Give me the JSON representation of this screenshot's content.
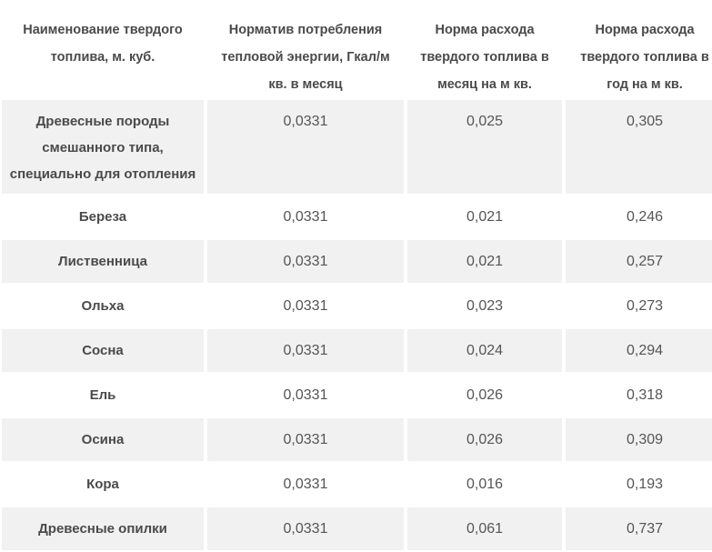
{
  "table": {
    "title_semantic": "solid-fuel-consumption-norms",
    "columns": [
      {
        "label": "Наименование твердого топлива, м. куб."
      },
      {
        "label": "Норматив потребления тепловой энергии, Гкал/м кв. в месяц"
      },
      {
        "label": "Норма расхода твердого топлива в месяц на м кв."
      },
      {
        "label": "Норма расхода твердого топлива в год на м кв."
      }
    ],
    "rows": [
      {
        "name": "Древесные породы смешанного типа, специально для отопления",
        "values": [
          "0,0331",
          "0,025",
          "0,305"
        ]
      },
      {
        "name": "Береза",
        "values": [
          "0,0331",
          "0,021",
          "0,246"
        ]
      },
      {
        "name": "Лиственница",
        "values": [
          "0,0331",
          "0,021",
          "0,257"
        ]
      },
      {
        "name": "Ольха",
        "values": [
          "0,0331",
          "0,023",
          "0,273"
        ]
      },
      {
        "name": "Сосна",
        "values": [
          "0,0331",
          "0,024",
          "0,294"
        ]
      },
      {
        "name": "Ель",
        "values": [
          "0,0331",
          "0,026",
          "0,318"
        ]
      },
      {
        "name": "Осина",
        "values": [
          "0,0331",
          "0,026",
          "0,309"
        ]
      },
      {
        "name": "Кора",
        "values": [
          "0,0331",
          "0,016",
          "0,193"
        ]
      },
      {
        "name": "Древесные опилки",
        "values": [
          "0,0331",
          "0,061",
          "0,737"
        ]
      }
    ],
    "colors": {
      "header_bg": "#ffffff",
      "header_text": "#4a4a4a",
      "row_bg": "#ffffff",
      "row_alt_bg": "#f1f1f1",
      "name_text": "#4a4a4a",
      "value_text": "#555555"
    }
  }
}
